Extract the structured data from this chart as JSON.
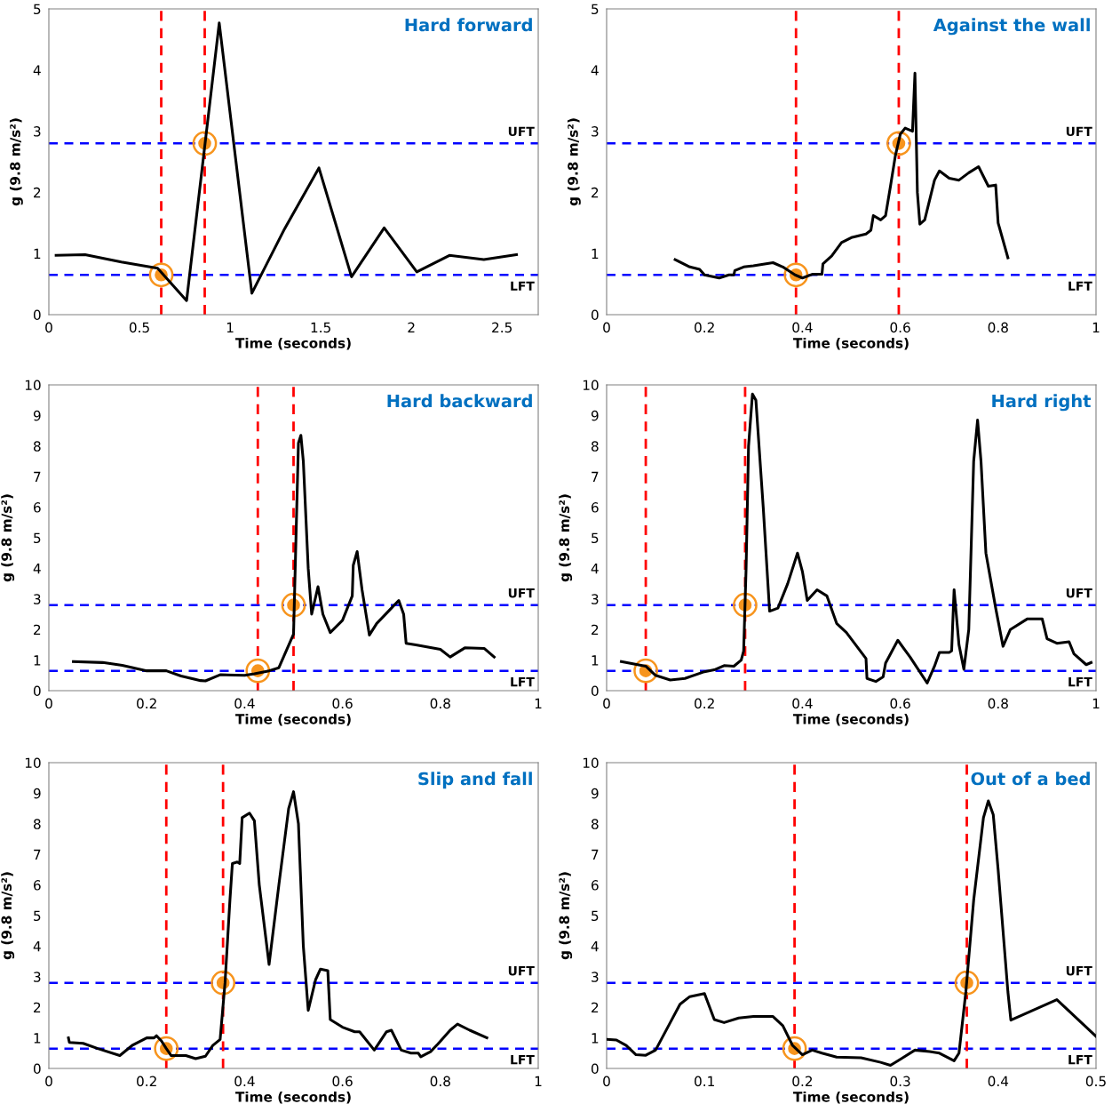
{
  "chart_data": [
    {
      "type": "line",
      "title": "Hard forward",
      "xlabel": "Time (seconds)",
      "ylabel": "g (9.8 m/s²)",
      "xlim": [
        0,
        2.7
      ],
      "xticks": [
        0,
        0.5,
        1,
        1.5,
        2,
        2.5
      ],
      "ylim": [
        0,
        5
      ],
      "yticks": [
        0,
        1,
        2,
        3,
        4,
        5
      ],
      "grid": false,
      "line_style": "solid",
      "marker": "none",
      "series": [
        {
          "type": "line",
          "color": "#000000",
          "x": [
            0.04,
            0.2,
            0.4,
            0.6,
            0.76,
            0.94,
            1.12,
            1.3,
            1.49,
            1.67,
            1.85,
            2.03,
            2.21,
            2.4,
            2.58
          ],
          "values": [
            0.97,
            0.98,
            0.86,
            0.76,
            0.23,
            4.77,
            0.35,
            1.4,
            2.4,
            0.62,
            1.42,
            0.7,
            0.97,
            0.9,
            0.98
          ]
        },
        {
          "type": "scatter",
          "color": "#f7941d",
          "marker": "circle",
          "x": [
            0.62,
            0.86
          ],
          "values": [
            0.65,
            2.8
          ]
        }
      ],
      "ref_lines": [
        {
          "axis": "y",
          "value": 2.8,
          "label": "UFT",
          "color": "#0000ff",
          "line_style": "dashed"
        },
        {
          "axis": "y",
          "value": 0.65,
          "label": "LFT",
          "color": "#0000ff",
          "line_style": "dashed"
        },
        {
          "axis": "x",
          "value": 0.62,
          "color": "#ff0000",
          "line_style": "dashed"
        },
        {
          "axis": "x",
          "value": 0.86,
          "color": "#ff0000",
          "line_style": "dashed"
        }
      ]
    },
    {
      "type": "line",
      "title": "Against the wall",
      "xlabel": "Time (seconds)",
      "ylabel": "g (9.8 m/s²)",
      "xlim": [
        0,
        1
      ],
      "xticks": [
        0,
        0.2,
        0.4,
        0.6,
        0.8,
        1
      ],
      "ylim": [
        0,
        5
      ],
      "yticks": [
        0,
        1,
        2,
        3,
        4,
        5
      ],
      "grid": false,
      "line_style": "solid",
      "marker": "none",
      "series": [
        {
          "type": "line",
          "color": "#000000",
          "x": [
            0.14,
            0.17,
            0.19,
            0.2,
            0.23,
            0.25,
            0.26,
            0.262,
            0.28,
            0.3,
            0.34,
            0.36,
            0.385,
            0.4,
            0.42,
            0.44,
            0.442,
            0.46,
            0.48,
            0.5,
            0.53,
            0.54,
            0.545,
            0.56,
            0.57,
            0.58,
            0.59,
            0.6,
            0.61,
            0.625,
            0.63,
            0.635,
            0.64,
            0.65,
            0.67,
            0.68,
            0.7,
            0.72,
            0.74,
            0.76,
            0.78,
            0.795,
            0.8,
            0.82
          ],
          "values": [
            0.9,
            0.78,
            0.74,
            0.65,
            0.6,
            0.65,
            0.65,
            0.72,
            0.78,
            0.8,
            0.85,
            0.78,
            0.65,
            0.6,
            0.66,
            0.66,
            0.83,
            0.96,
            1.18,
            1.26,
            1.32,
            1.38,
            1.62,
            1.55,
            1.62,
            2.1,
            2.6,
            2.95,
            3.05,
            3.0,
            3.95,
            2.0,
            1.48,
            1.55,
            2.2,
            2.35,
            2.23,
            2.2,
            2.32,
            2.42,
            2.1,
            2.12,
            1.5,
            0.93
          ]
        },
        {
          "type": "scatter",
          "color": "#f7941d",
          "marker": "circle",
          "x": [
            0.387,
            0.597
          ],
          "values": [
            0.65,
            2.8
          ]
        }
      ],
      "ref_lines": [
        {
          "axis": "y",
          "value": 2.8,
          "label": "UFT",
          "color": "#0000ff",
          "line_style": "dashed"
        },
        {
          "axis": "y",
          "value": 0.65,
          "label": "LFT",
          "color": "#0000ff",
          "line_style": "dashed"
        },
        {
          "axis": "x",
          "value": 0.387,
          "color": "#ff0000",
          "line_style": "dashed"
        },
        {
          "axis": "x",
          "value": 0.597,
          "color": "#ff0000",
          "line_style": "dashed"
        }
      ]
    },
    {
      "type": "line",
      "title": "Hard backward",
      "xlabel": "Time (seconds)",
      "ylabel": "g (9.8 m/s²)",
      "xlim": [
        0,
        1
      ],
      "xticks": [
        0,
        0.2,
        0.4,
        0.6,
        0.8,
        1
      ],
      "ylim": [
        0,
        10
      ],
      "yticks": [
        0,
        1,
        2,
        3,
        4,
        5,
        6,
        7,
        8,
        9,
        10
      ],
      "grid": false,
      "line_style": "solid",
      "marker": "none",
      "series": [
        {
          "type": "line",
          "color": "#000000",
          "x": [
            0.05,
            0.11,
            0.15,
            0.2,
            0.24,
            0.27,
            0.31,
            0.32,
            0.35,
            0.4,
            0.42,
            0.45,
            0.47,
            0.5,
            0.505,
            0.51,
            0.515,
            0.52,
            0.53,
            0.537,
            0.55,
            0.56,
            0.575,
            0.6,
            0.62,
            0.622,
            0.63,
            0.64,
            0.655,
            0.67,
            0.7,
            0.715,
            0.725,
            0.73,
            0.75,
            0.79,
            0.8,
            0.82,
            0.85,
            0.89,
            0.91
          ],
          "values": [
            0.95,
            0.92,
            0.83,
            0.65,
            0.65,
            0.48,
            0.33,
            0.32,
            0.52,
            0.5,
            0.55,
            0.65,
            0.75,
            1.85,
            5.0,
            8.1,
            8.35,
            7.5,
            4.0,
            2.5,
            3.4,
            2.5,
            1.9,
            2.3,
            3.1,
            4.1,
            4.55,
            3.3,
            1.82,
            2.2,
            2.7,
            2.95,
            2.5,
            1.55,
            1.5,
            1.38,
            1.35,
            1.1,
            1.4,
            1.38,
            1.1
          ]
        },
        {
          "type": "scatter",
          "color": "#f7941d",
          "marker": "circle",
          "x": [
            0.427,
            0.5
          ],
          "values": [
            0.65,
            2.8
          ]
        }
      ],
      "ref_lines": [
        {
          "axis": "y",
          "value": 2.8,
          "label": "UFT",
          "color": "#0000ff",
          "line_style": "dashed"
        },
        {
          "axis": "y",
          "value": 0.65,
          "label": "LFT",
          "color": "#0000ff",
          "line_style": "dashed"
        },
        {
          "axis": "x",
          "value": 0.427,
          "color": "#ff0000",
          "line_style": "dashed"
        },
        {
          "axis": "x",
          "value": 0.5,
          "color": "#ff0000",
          "line_style": "dashed"
        }
      ]
    },
    {
      "type": "line",
      "title": "Hard right",
      "xlabel": "Time (seconds)",
      "ylabel": "g (9.8 m/s²)",
      "xlim": [
        0,
        1
      ],
      "xticks": [
        0,
        0.2,
        0.4,
        0.6,
        0.8,
        1
      ],
      "ylim": [
        0,
        10
      ],
      "yticks": [
        0,
        1,
        2,
        3,
        4,
        5,
        6,
        7,
        8,
        9,
        10
      ],
      "grid": false,
      "line_style": "solid",
      "marker": "none",
      "series": [
        {
          "type": "line",
          "color": "#000000",
          "x": [
            0.03,
            0.08,
            0.1,
            0.13,
            0.16,
            0.2,
            0.22,
            0.24,
            0.26,
            0.275,
            0.28,
            0.285,
            0.29,
            0.298,
            0.305,
            0.32,
            0.333,
            0.35,
            0.37,
            0.39,
            0.4,
            0.41,
            0.43,
            0.45,
            0.47,
            0.49,
            0.53,
            0.532,
            0.55,
            0.565,
            0.57,
            0.595,
            0.62,
            0.655,
            0.67,
            0.68,
            0.7,
            0.705,
            0.71,
            0.72,
            0.73,
            0.74,
            0.75,
            0.758,
            0.765,
            0.775,
            0.795,
            0.81,
            0.825,
            0.86,
            0.89,
            0.9,
            0.92,
            0.945,
            0.955,
            0.98,
            0.99
          ],
          "values": [
            0.95,
            0.8,
            0.5,
            0.35,
            0.4,
            0.62,
            0.68,
            0.82,
            0.8,
            1.0,
            1.3,
            4.0,
            8.0,
            9.7,
            9.5,
            6.0,
            2.6,
            2.7,
            3.5,
            4.5,
            3.9,
            2.95,
            3.3,
            3.1,
            2.2,
            1.9,
            1.05,
            0.4,
            0.3,
            0.45,
            0.9,
            1.65,
            1.1,
            0.25,
            0.8,
            1.25,
            1.25,
            1.3,
            3.3,
            1.5,
            0.7,
            2.0,
            7.5,
            8.85,
            7.5,
            4.5,
            2.7,
            1.45,
            2.0,
            2.35,
            2.35,
            1.7,
            1.55,
            1.6,
            1.2,
            0.85,
            0.92
          ]
        },
        {
          "type": "scatter",
          "color": "#f7941d",
          "marker": "circle",
          "x": [
            0.08,
            0.283
          ],
          "values": [
            0.65,
            2.8
          ]
        }
      ],
      "ref_lines": [
        {
          "axis": "y",
          "value": 2.8,
          "label": "UFT",
          "color": "#0000ff",
          "line_style": "dashed"
        },
        {
          "axis": "y",
          "value": 0.65,
          "label": "LFT",
          "color": "#0000ff",
          "line_style": "dashed"
        },
        {
          "axis": "x",
          "value": 0.08,
          "color": "#ff0000",
          "line_style": "dashed"
        },
        {
          "axis": "x",
          "value": 0.283,
          "color": "#ff0000",
          "line_style": "dashed"
        }
      ]
    },
    {
      "type": "line",
      "title": "Slip and fall",
      "xlabel": "Time (seconds)",
      "ylabel": "g (9.8 m/s²)",
      "xlim": [
        0,
        1
      ],
      "xticks": [
        0,
        0.2,
        0.4,
        0.6,
        0.8,
        1
      ],
      "ylim": [
        0,
        10
      ],
      "yticks": [
        0,
        1,
        2,
        3,
        4,
        5,
        6,
        7,
        8,
        9,
        10
      ],
      "grid": false,
      "line_style": "solid",
      "marker": "none",
      "series": [
        {
          "type": "line",
          "color": "#000000",
          "x": [
            0.04,
            0.042,
            0.07,
            0.1,
            0.145,
            0.17,
            0.2,
            0.215,
            0.22,
            0.23,
            0.24,
            0.25,
            0.28,
            0.3,
            0.32,
            0.335,
            0.35,
            0.36,
            0.37,
            0.375,
            0.385,
            0.39,
            0.395,
            0.41,
            0.42,
            0.43,
            0.45,
            0.47,
            0.49,
            0.5,
            0.51,
            0.52,
            0.53,
            0.545,
            0.555,
            0.57,
            0.575,
            0.6,
            0.625,
            0.635,
            0.665,
            0.69,
            0.7,
            0.72,
            0.74,
            0.755,
            0.76,
            0.78,
            0.795,
            0.82,
            0.835,
            0.86,
            0.895
          ],
          "values": [
            1.0,
            0.85,
            0.82,
            0.65,
            0.42,
            0.75,
            1.0,
            1.0,
            1.07,
            0.9,
            0.65,
            0.42,
            0.42,
            0.32,
            0.4,
            0.75,
            0.95,
            2.8,
            5.5,
            6.7,
            6.75,
            6.7,
            8.2,
            8.35,
            8.1,
            6.0,
            3.4,
            6.0,
            8.5,
            9.05,
            8.0,
            4.0,
            1.9,
            2.9,
            3.25,
            3.2,
            1.6,
            1.35,
            1.2,
            1.2,
            0.6,
            1.2,
            1.25,
            0.6,
            0.5,
            0.5,
            0.38,
            0.55,
            0.8,
            1.25,
            1.45,
            1.25,
            1.0
          ]
        },
        {
          "type": "scatter",
          "color": "#f7941d",
          "marker": "circle",
          "x": [
            0.24,
            0.356
          ],
          "values": [
            0.65,
            2.8
          ]
        }
      ],
      "ref_lines": [
        {
          "axis": "y",
          "value": 2.8,
          "label": "UFT",
          "color": "#0000ff",
          "line_style": "dashed"
        },
        {
          "axis": "y",
          "value": 0.65,
          "label": "LFT",
          "color": "#0000ff",
          "line_style": "dashed"
        },
        {
          "axis": "x",
          "value": 0.24,
          "color": "#ff0000",
          "line_style": "dashed"
        },
        {
          "axis": "x",
          "value": 0.356,
          "color": "#ff0000",
          "line_style": "dashed"
        }
      ]
    },
    {
      "type": "line",
      "title": "Out of a bed",
      "xlabel": "Time (seconds)",
      "ylabel": "g (9.8 m/s²)",
      "xlim": [
        0,
        0.5
      ],
      "xticks": [
        0,
        0.1,
        0.2,
        0.3,
        0.4,
        0.5
      ],
      "ylim": [
        0,
        10
      ],
      "yticks": [
        0,
        1,
        2,
        3,
        4,
        5,
        6,
        7,
        8,
        9,
        10
      ],
      "grid": false,
      "line_style": "solid",
      "marker": "none",
      "series": [
        {
          "type": "line",
          "color": "#000000",
          "x": [
            0,
            0.01,
            0.02,
            0.03,
            0.04,
            0.05,
            0.065,
            0.075,
            0.085,
            0.1,
            0.11,
            0.12,
            0.135,
            0.15,
            0.17,
            0.18,
            0.19,
            0.2,
            0.21,
            0.22,
            0.235,
            0.26,
            0.28,
            0.29,
            0.3,
            0.315,
            0.33,
            0.34,
            0.355,
            0.36,
            0.367,
            0.375,
            0.385,
            0.39,
            0.395,
            0.4,
            0.41,
            0.413,
            0.46,
            0.5
          ],
          "values": [
            0.95,
            0.93,
            0.75,
            0.45,
            0.43,
            0.6,
            1.5,
            2.1,
            2.35,
            2.45,
            1.6,
            1.5,
            1.65,
            1.7,
            1.7,
            1.4,
            0.75,
            0.45,
            0.6,
            0.5,
            0.37,
            0.35,
            0.2,
            0.1,
            0.3,
            0.6,
            0.55,
            0.5,
            0.25,
            0.5,
            2.5,
            5.5,
            8.2,
            8.75,
            8.3,
            6.5,
            2.5,
            1.58,
            2.25,
            1.05
          ]
        },
        {
          "type": "scatter",
          "color": "#f7941d",
          "marker": "circle",
          "x": [
            0.192,
            0.368
          ],
          "values": [
            0.65,
            2.8
          ]
        }
      ],
      "ref_lines": [
        {
          "axis": "y",
          "value": 2.8,
          "label": "UFT",
          "color": "#0000ff",
          "line_style": "dashed"
        },
        {
          "axis": "y",
          "value": 0.65,
          "label": "LFT",
          "color": "#0000ff",
          "line_style": "dashed"
        },
        {
          "axis": "x",
          "value": 0.192,
          "color": "#ff0000",
          "line_style": "dashed"
        },
        {
          "axis": "x",
          "value": 0.368,
          "color": "#ff0000",
          "line_style": "dashed"
        }
      ]
    }
  ]
}
